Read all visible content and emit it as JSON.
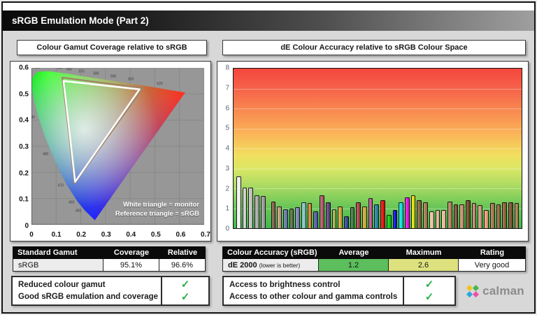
{
  "title": "sRGB Emulation Mode (Part 2)",
  "ui": {
    "check_icon": "✓"
  },
  "left_panel": {
    "header": "Colour Gamut Coverage relative to sRGB",
    "legend": {
      "line1": "White triangle = monitor",
      "line2": "Reference triangle = sRGB"
    },
    "gamut_table": {
      "headers": [
        "Standard Gamut",
        "Coverage",
        "Relative"
      ],
      "row": [
        "sRGB",
        "95.1%",
        "96.6%"
      ]
    },
    "checklist": [
      {
        "label": "Reduced colour gamut",
        "checked": true
      },
      {
        "label": "Good sRGB emulation and coverage",
        "checked": true
      }
    ]
  },
  "right_panel": {
    "header": "dE Colour Accuracy relative to sRGB Colour Space",
    "accuracy_table": {
      "headers": [
        "Colour Accuracy (sRGB)",
        "Average",
        "Maximum",
        "Rating"
      ],
      "row_label": "dE 2000",
      "row_note": "(lower is better)",
      "average": "1.2",
      "maximum": "2.6",
      "rating": "Very good",
      "average_bg": "#5cbe5c",
      "maximum_bg": "#dde27e"
    },
    "checklist": [
      {
        "label": "Access to brightness control",
        "checked": true
      },
      {
        "label": "Access to other colour and gamma controls",
        "checked": true
      }
    ],
    "logo_text": "calman"
  },
  "chart_data": [
    {
      "type": "scatter",
      "subtype": "cie-1976-uv-chromaticity-gamut",
      "title": "Colour Gamut Coverage relative to sRGB",
      "xlim": [
        0,
        0.7
      ],
      "ylim": [
        0,
        0.6
      ],
      "x_ticks": [
        "0",
        "0.1",
        "0.2",
        "0.3",
        "0.4",
        "0.5",
        "0.6",
        "0.7"
      ],
      "y_ticks": [
        "0.6",
        "0.5",
        "0.4",
        "0.3",
        "0.2",
        "0.1",
        "0"
      ],
      "grid": true,
      "coverage_pct": 95.1,
      "relative_pct": 96.6,
      "reference_triangle_srgb": [
        [
          0.451,
          0.523
        ],
        [
          0.125,
          0.563
        ],
        [
          0.175,
          0.158
        ]
      ],
      "monitor_triangle": [
        [
          0.438,
          0.518
        ],
        [
          0.13,
          0.55
        ],
        [
          0.177,
          0.164
        ]
      ],
      "locus": [
        [
          0.257,
          0.017
        ],
        [
          0.216,
          0.055
        ],
        [
          0.188,
          0.087
        ],
        [
          0.144,
          0.151
        ],
        [
          0.115,
          0.204
        ],
        [
          0.083,
          0.271
        ],
        [
          0.052,
          0.343
        ],
        [
          0.028,
          0.412
        ],
        [
          0.012,
          0.47
        ],
        [
          0.003,
          0.513
        ],
        [
          0.001,
          0.543
        ],
        [
          0.005,
          0.564
        ],
        [
          0.023,
          0.584
        ],
        [
          0.05,
          0.587
        ],
        [
          0.079,
          0.586
        ],
        [
          0.113,
          0.582
        ],
        [
          0.153,
          0.577
        ],
        [
          0.203,
          0.569
        ],
        [
          0.262,
          0.56
        ],
        [
          0.332,
          0.55
        ],
        [
          0.403,
          0.539
        ],
        [
          0.469,
          0.53
        ],
        [
          0.52,
          0.522
        ],
        [
          0.556,
          0.516
        ],
        [
          0.623,
          0.506
        ]
      ],
      "wavelength_labels": [
        {
          "nm": "520",
          "u": 0.023,
          "v": 0.584
        },
        {
          "nm": "530",
          "u": 0.05,
          "v": 0.587
        },
        {
          "nm": "540",
          "u": 0.079,
          "v": 0.586
        },
        {
          "nm": "550",
          "u": 0.113,
          "v": 0.582
        },
        {
          "nm": "560",
          "u": 0.153,
          "v": 0.577
        },
        {
          "nm": "570",
          "u": 0.203,
          "v": 0.569
        },
        {
          "nm": "580",
          "u": 0.262,
          "v": 0.56
        },
        {
          "nm": "590",
          "u": 0.332,
          "v": 0.55
        },
        {
          "nm": "600",
          "u": 0.403,
          "v": 0.539
        },
        {
          "nm": "620",
          "u": 0.52,
          "v": 0.522
        },
        {
          "nm": "490",
          "u": 0.028,
          "v": 0.412
        },
        {
          "nm": "480",
          "u": 0.083,
          "v": 0.271
        },
        {
          "nm": "470",
          "u": 0.144,
          "v": 0.151
        },
        {
          "nm": "460",
          "u": 0.188,
          "v": 0.087
        },
        {
          "nm": "450",
          "u": 0.216,
          "v": 0.055
        }
      ]
    },
    {
      "type": "bar",
      "title": "dE Colour Accuracy relative to sRGB Colour Space",
      "ylabel": "dE 2000",
      "ylim": [
        0,
        8
      ],
      "y_ticks": [
        8,
        7,
        6,
        5,
        4,
        3,
        2,
        1,
        0
      ],
      "grid": true,
      "average": 1.2,
      "maximum": 2.6,
      "group_gaps_after": [
        4
      ],
      "bars": [
        {
          "c": "#ffffff",
          "v": 2.6
        },
        {
          "c": "#d9d9d9",
          "v": 2.05
        },
        {
          "c": "#c9c9c9",
          "v": 2.05
        },
        {
          "c": "#aeaeae",
          "v": 1.65
        },
        {
          "c": "#9c9c9c",
          "v": 1.6
        },
        {
          "c": "#8a5c46",
          "v": 1.35
        },
        {
          "c": "#c79c80",
          "v": 1.1
        },
        {
          "c": "#5e7ca6",
          "v": 0.95
        },
        {
          "c": "#5d7345",
          "v": 1.0
        },
        {
          "c": "#7e80b8",
          "v": 1.05
        },
        {
          "c": "#86ccc6",
          "v": 1.3
        },
        {
          "c": "#d98a33",
          "v": 1.25
        },
        {
          "c": "#4d5ba6",
          "v": 0.85
        },
        {
          "c": "#b25563",
          "v": 1.65
        },
        {
          "c": "#5a3e78",
          "v": 1.3
        },
        {
          "c": "#9eba44",
          "v": 0.95
        },
        {
          "c": "#dba63a",
          "v": 1.1
        },
        {
          "c": "#2e3d96",
          "v": 0.6
        },
        {
          "c": "#3f7b41",
          "v": 1.05
        },
        {
          "c": "#ad3a3f",
          "v": 1.3
        },
        {
          "c": "#d9aa30",
          "v": 1.1
        },
        {
          "c": "#c9519b",
          "v": 1.5
        },
        {
          "c": "#1f7f9f",
          "v": 1.2
        },
        {
          "c": "#f20000",
          "v": 1.4
        },
        {
          "c": "#00d400",
          "v": 0.65
        },
        {
          "c": "#0000f2",
          "v": 0.9
        },
        {
          "c": "#00e8e8",
          "v": 1.3
        },
        {
          "c": "#f000f0",
          "v": 1.55
        },
        {
          "c": "#f2e600",
          "v": 1.65
        },
        {
          "c": "#8c5f38",
          "v": 1.4
        },
        {
          "c": "#a67848",
          "v": 1.3
        },
        {
          "c": "#f6cba4",
          "v": 0.85
        },
        {
          "c": "#f0bd94",
          "v": 0.9
        },
        {
          "c": "#f3c29c",
          "v": 0.9
        },
        {
          "c": "#b5825c",
          "v": 1.35
        },
        {
          "c": "#7d5030",
          "v": 1.2
        },
        {
          "c": "#c6946e",
          "v": 1.2
        },
        {
          "c": "#6f431f",
          "v": 1.4
        },
        {
          "c": "#bb8d64",
          "v": 1.25
        },
        {
          "c": "#cb9f7a",
          "v": 1.15
        },
        {
          "c": "#f09e72",
          "v": 0.9
        },
        {
          "c": "#a9724a",
          "v": 1.25
        },
        {
          "c": "#9d673e",
          "v": 1.2
        },
        {
          "c": "#8f5a33",
          "v": 1.3
        },
        {
          "c": "#7b4a27",
          "v": 1.3
        },
        {
          "c": "#b07e55",
          "v": 1.25
        }
      ]
    }
  ]
}
